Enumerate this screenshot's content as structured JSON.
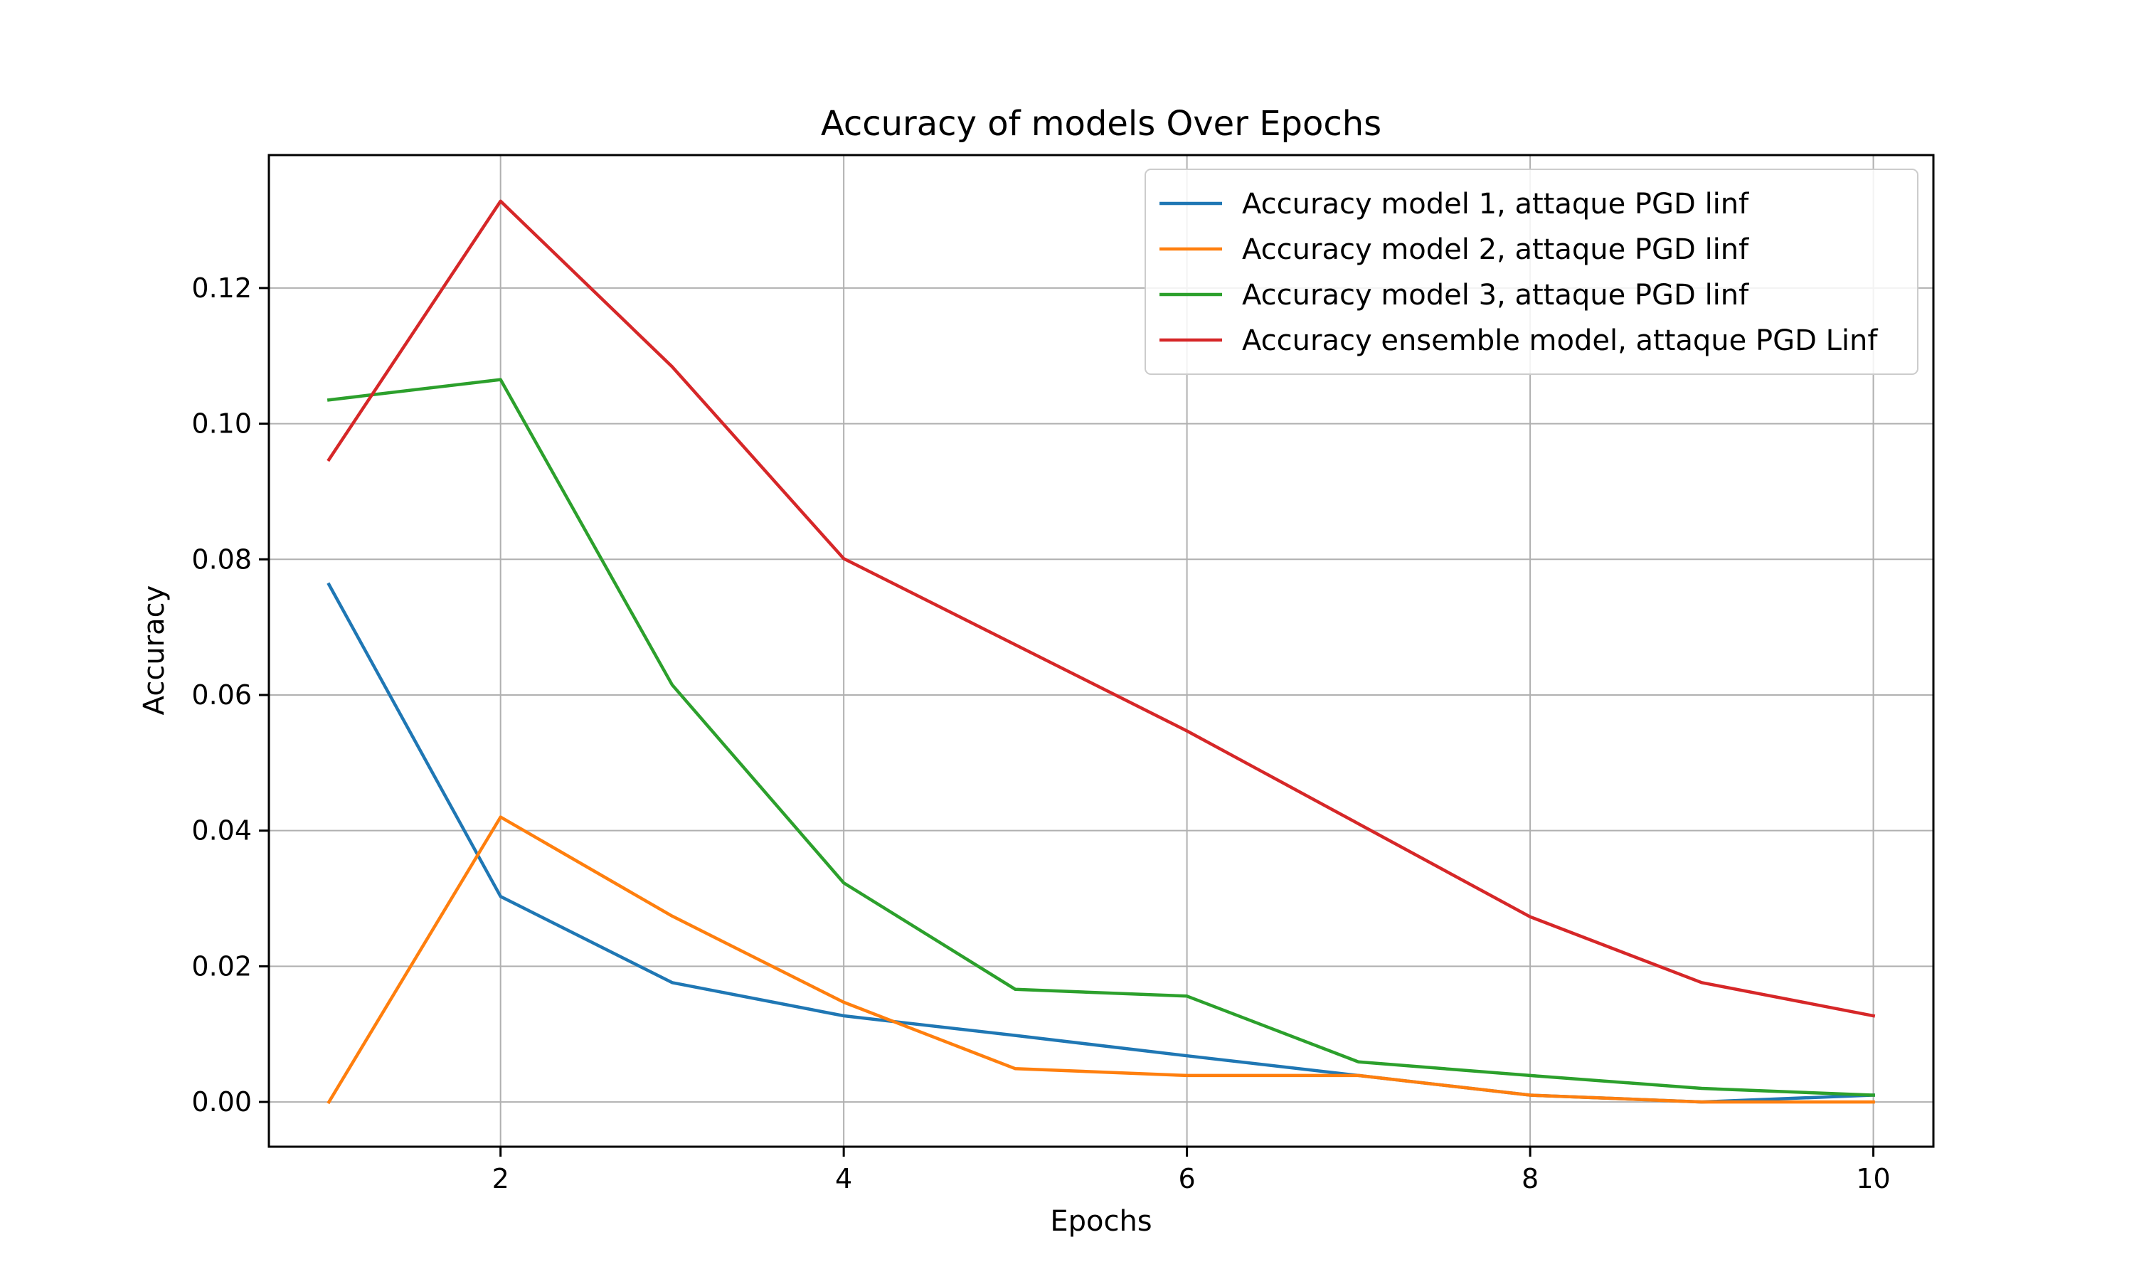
{
  "chart_data": {
    "type": "line",
    "title": "Accuracy of models Over Epochs",
    "xlabel": "Epochs",
    "ylabel": "Accuracy",
    "x": [
      1,
      2,
      3,
      4,
      5,
      6,
      7,
      8,
      9,
      10
    ],
    "xlim": [
      0.65,
      10.35
    ],
    "ylim": [
      -0.0066,
      0.1396
    ],
    "xticks": [
      2,
      4,
      6,
      8,
      10
    ],
    "xtick_labels": [
      "2",
      "4",
      "6",
      "8",
      "10"
    ],
    "yticks": [
      0.0,
      0.02,
      0.04,
      0.06,
      0.08,
      0.1,
      0.12
    ],
    "ytick_labels": [
      "0.00",
      "0.02",
      "0.04",
      "0.06",
      "0.08",
      "0.10",
      "0.12"
    ],
    "grid": true,
    "legend_position": "top-right",
    "series": [
      {
        "name": "Accuracy model 1, attaque PGD linf",
        "color": "#1f77b4",
        "values": [
          0.0763,
          0.0303,
          0.0176,
          0.0127,
          0.0098,
          0.0068,
          0.0039,
          0.001,
          0.0,
          0.001
        ]
      },
      {
        "name": "Accuracy model 2, attaque PGD linf",
        "color": "#ff7f0e",
        "values": [
          0.0,
          0.042,
          0.0274,
          0.0147,
          0.0049,
          0.0039,
          0.0039,
          0.001,
          0.0,
          0.0
        ]
      },
      {
        "name": "Accuracy model 3, attaque PGD linf",
        "color": "#2ca02c",
        "values": [
          0.1035,
          0.1065,
          0.0615,
          0.0323,
          0.0166,
          0.0156,
          0.0059,
          0.0039,
          0.002,
          0.001
        ]
      },
      {
        "name": "Accuracy ensemble model, attaque PGD Linf",
        "color": "#d62728",
        "values": [
          0.0947,
          0.1328,
          0.1084,
          0.0801,
          0.0674,
          0.0547,
          0.041,
          0.0273,
          0.0176,
          0.0127
        ]
      }
    ]
  }
}
